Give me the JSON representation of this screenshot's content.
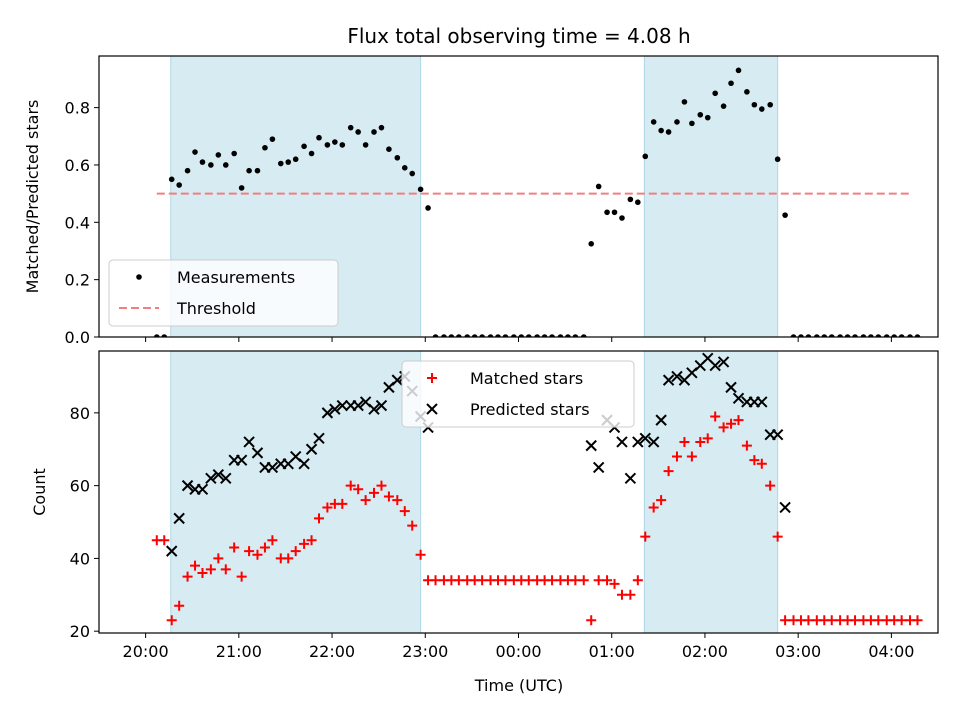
{
  "figure": {
    "title": "Flux total observing time = 4.08 h",
    "colors": {
      "shade": "#add8e6",
      "threshold": "#f08080",
      "matched": "#ff0000",
      "predicted": "#000000",
      "measurement": "#000000"
    },
    "x_axis": {
      "label": "Time (UTC)",
      "unit": "hours",
      "range": [
        -0.5,
        8.5
      ],
      "ticks": [
        {
          "value": 0,
          "label": "20:00"
        },
        {
          "value": 1,
          "label": "21:00"
        },
        {
          "value": 2,
          "label": "22:00"
        },
        {
          "value": 3,
          "label": "23:00"
        },
        {
          "value": 4,
          "label": "00:00"
        },
        {
          "value": 5,
          "label": "01:00"
        },
        {
          "value": 6,
          "label": "02:00"
        },
        {
          "value": 7,
          "label": "03:00"
        },
        {
          "value": 8,
          "label": "04:00"
        }
      ]
    },
    "shaded_intervals": [
      [
        0.27,
        2.95
      ],
      [
        5.35,
        6.78
      ]
    ]
  },
  "chart_data": [
    {
      "type": "scatter",
      "ylabel": "Matched/Predicted stars",
      "ylim": [
        0,
        0.98
      ],
      "yticks": [
        0.0,
        0.2,
        0.4,
        0.6,
        0.8
      ],
      "ytick_labels": [
        "0.0",
        "0.2",
        "0.4",
        "0.6",
        "0.8"
      ],
      "legend": {
        "position": "lower-left",
        "entries": [
          "Measurements",
          "Threshold"
        ]
      },
      "threshold": {
        "name": "Threshold",
        "value": 0.5,
        "x_range": [
          0.12,
          8.22
        ]
      },
      "series": [
        {
          "name": "Measurements",
          "marker": "dot",
          "points": [
            [
              0.12,
              0.0
            ],
            [
              0.2,
              0.0
            ],
            [
              0.28,
              0.55
            ],
            [
              0.36,
              0.53
            ],
            [
              0.45,
              0.58
            ],
            [
              0.53,
              0.645
            ],
            [
              0.61,
              0.61
            ],
            [
              0.7,
              0.6
            ],
            [
              0.78,
              0.635
            ],
            [
              0.86,
              0.6
            ],
            [
              0.95,
              0.64
            ],
            [
              1.03,
              0.52
            ],
            [
              1.11,
              0.58
            ],
            [
              1.2,
              0.58
            ],
            [
              1.28,
              0.66
            ],
            [
              1.36,
              0.69
            ],
            [
              1.45,
              0.605
            ],
            [
              1.53,
              0.61
            ],
            [
              1.61,
              0.62
            ],
            [
              1.7,
              0.665
            ],
            [
              1.78,
              0.64
            ],
            [
              1.86,
              0.695
            ],
            [
              1.95,
              0.67
            ],
            [
              2.03,
              0.68
            ],
            [
              2.11,
              0.67
            ],
            [
              2.2,
              0.73
            ],
            [
              2.28,
              0.715
            ],
            [
              2.36,
              0.67
            ],
            [
              2.45,
              0.715
            ],
            [
              2.53,
              0.73
            ],
            [
              2.61,
              0.655
            ],
            [
              2.7,
              0.625
            ],
            [
              2.78,
              0.59
            ],
            [
              2.86,
              0.57
            ],
            [
              2.95,
              0.515
            ],
            [
              3.03,
              0.45
            ],
            [
              3.11,
              0.0
            ],
            [
              3.2,
              0.0
            ],
            [
              3.28,
              0.0
            ],
            [
              3.36,
              0.0
            ],
            [
              3.45,
              0.0
            ],
            [
              3.53,
              0.0
            ],
            [
              3.61,
              0.0
            ],
            [
              3.7,
              0.0
            ],
            [
              3.78,
              0.0
            ],
            [
              3.86,
              0.0
            ],
            [
              3.95,
              0.0
            ],
            [
              4.03,
              0.0
            ],
            [
              4.11,
              0.0
            ],
            [
              4.2,
              0.0
            ],
            [
              4.28,
              0.0
            ],
            [
              4.36,
              0.0
            ],
            [
              4.45,
              0.0
            ],
            [
              4.53,
              0.0
            ],
            [
              4.61,
              0.0
            ],
            [
              4.7,
              0.0
            ],
            [
              4.78,
              0.325
            ],
            [
              4.86,
              0.525
            ],
            [
              4.95,
              0.435
            ],
            [
              5.03,
              0.435
            ],
            [
              5.11,
              0.415
            ],
            [
              5.2,
              0.48
            ],
            [
              5.28,
              0.47
            ],
            [
              5.36,
              0.63
            ],
            [
              5.45,
              0.75
            ],
            [
              5.53,
              0.72
            ],
            [
              5.61,
              0.715
            ],
            [
              5.7,
              0.75
            ],
            [
              5.78,
              0.82
            ],
            [
              5.86,
              0.745
            ],
            [
              5.95,
              0.775
            ],
            [
              6.03,
              0.765
            ],
            [
              6.11,
              0.85
            ],
            [
              6.2,
              0.805
            ],
            [
              6.28,
              0.885
            ],
            [
              6.36,
              0.93
            ],
            [
              6.45,
              0.855
            ],
            [
              6.53,
              0.81
            ],
            [
              6.61,
              0.795
            ],
            [
              6.7,
              0.81
            ],
            [
              6.78,
              0.62
            ],
            [
              6.86,
              0.425
            ],
            [
              6.95,
              0.0
            ],
            [
              7.03,
              0.0
            ],
            [
              7.11,
              0.0
            ],
            [
              7.2,
              0.0
            ],
            [
              7.28,
              0.0
            ],
            [
              7.36,
              0.0
            ],
            [
              7.45,
              0.0
            ],
            [
              7.53,
              0.0
            ],
            [
              7.61,
              0.0
            ],
            [
              7.7,
              0.0
            ],
            [
              7.78,
              0.0
            ],
            [
              7.86,
              0.0
            ],
            [
              7.95,
              0.0
            ],
            [
              8.03,
              0.0
            ],
            [
              8.11,
              0.0
            ],
            [
              8.2,
              0.0
            ],
            [
              8.28,
              0.0
            ]
          ]
        }
      ]
    },
    {
      "type": "scatter",
      "ylabel": "Count",
      "ylim": [
        19.5,
        97
      ],
      "yticks": [
        20,
        40,
        60,
        80
      ],
      "ytick_labels": [
        "20",
        "40",
        "60",
        "80"
      ],
      "legend": {
        "position": "upper-center",
        "entries": [
          "Matched stars",
          "Predicted stars"
        ]
      },
      "series": [
        {
          "name": "Matched stars",
          "marker": "plus",
          "points": [
            [
              0.12,
              45
            ],
            [
              0.2,
              45
            ],
            [
              0.28,
              23
            ],
            [
              0.36,
              27
            ],
            [
              0.45,
              35
            ],
            [
              0.53,
              38
            ],
            [
              0.61,
              36
            ],
            [
              0.7,
              37
            ],
            [
              0.78,
              40
            ],
            [
              0.86,
              37
            ],
            [
              0.95,
              43
            ],
            [
              1.03,
              35
            ],
            [
              1.11,
              42
            ],
            [
              1.2,
              41
            ],
            [
              1.28,
              43
            ],
            [
              1.36,
              45
            ],
            [
              1.45,
              40
            ],
            [
              1.53,
              40
            ],
            [
              1.61,
              42
            ],
            [
              1.7,
              44
            ],
            [
              1.78,
              45
            ],
            [
              1.86,
              51
            ],
            [
              1.95,
              54
            ],
            [
              2.03,
              55
            ],
            [
              2.11,
              55
            ],
            [
              2.2,
              60
            ],
            [
              2.28,
              59
            ],
            [
              2.36,
              56
            ],
            [
              2.45,
              58
            ],
            [
              2.53,
              60
            ],
            [
              2.61,
              57
            ],
            [
              2.7,
              56
            ],
            [
              2.78,
              53
            ],
            [
              2.86,
              49
            ],
            [
              2.95,
              41
            ],
            [
              3.03,
              34
            ],
            [
              3.11,
              34
            ],
            [
              3.2,
              34
            ],
            [
              3.28,
              34
            ],
            [
              3.36,
              34
            ],
            [
              3.45,
              34
            ],
            [
              3.53,
              34
            ],
            [
              3.61,
              34
            ],
            [
              3.7,
              34
            ],
            [
              3.78,
              34
            ],
            [
              3.86,
              34
            ],
            [
              3.95,
              34
            ],
            [
              4.03,
              34
            ],
            [
              4.11,
              34
            ],
            [
              4.2,
              34
            ],
            [
              4.28,
              34
            ],
            [
              4.36,
              34
            ],
            [
              4.45,
              34
            ],
            [
              4.53,
              34
            ],
            [
              4.61,
              34
            ],
            [
              4.7,
              34
            ],
            [
              4.78,
              23
            ],
            [
              4.86,
              34
            ],
            [
              4.95,
              34
            ],
            [
              5.03,
              33
            ],
            [
              5.11,
              30
            ],
            [
              5.2,
              30
            ],
            [
              5.28,
              34
            ],
            [
              5.36,
              46
            ],
            [
              5.45,
              54
            ],
            [
              5.53,
              56
            ],
            [
              5.61,
              64
            ],
            [
              5.7,
              68
            ],
            [
              5.78,
              72
            ],
            [
              5.86,
              68
            ],
            [
              5.95,
              72
            ],
            [
              6.03,
              73
            ],
            [
              6.11,
              79
            ],
            [
              6.2,
              76
            ],
            [
              6.28,
              77
            ],
            [
              6.36,
              78
            ],
            [
              6.45,
              71
            ],
            [
              6.53,
              67
            ],
            [
              6.61,
              66
            ],
            [
              6.7,
              60
            ],
            [
              6.78,
              46
            ],
            [
              6.86,
              23
            ],
            [
              6.95,
              23
            ],
            [
              7.03,
              23
            ],
            [
              7.11,
              23
            ],
            [
              7.2,
              23
            ],
            [
              7.28,
              23
            ],
            [
              7.36,
              23
            ],
            [
              7.45,
              23
            ],
            [
              7.53,
              23
            ],
            [
              7.61,
              23
            ],
            [
              7.7,
              23
            ],
            [
              7.78,
              23
            ],
            [
              7.86,
              23
            ],
            [
              7.95,
              23
            ],
            [
              8.03,
              23
            ],
            [
              8.11,
              23
            ],
            [
              8.2,
              23
            ],
            [
              8.28,
              23
            ]
          ]
        },
        {
          "name": "Predicted stars",
          "marker": "x",
          "points": [
            [
              0.28,
              42
            ],
            [
              0.36,
              51
            ],
            [
              0.45,
              60
            ],
            [
              0.53,
              59
            ],
            [
              0.61,
              59
            ],
            [
              0.7,
              62
            ],
            [
              0.78,
              63
            ],
            [
              0.86,
              62
            ],
            [
              0.95,
              67
            ],
            [
              1.03,
              67
            ],
            [
              1.11,
              72
            ],
            [
              1.2,
              69
            ],
            [
              1.28,
              65
            ],
            [
              1.36,
              65
            ],
            [
              1.45,
              66
            ],
            [
              1.53,
              66
            ],
            [
              1.61,
              68
            ],
            [
              1.7,
              66
            ],
            [
              1.78,
              70
            ],
            [
              1.86,
              73
            ],
            [
              1.95,
              80
            ],
            [
              2.03,
              81
            ],
            [
              2.11,
              82
            ],
            [
              2.2,
              82
            ],
            [
              2.28,
              82
            ],
            [
              2.36,
              83
            ],
            [
              2.45,
              81
            ],
            [
              2.53,
              82
            ],
            [
              2.61,
              87
            ],
            [
              2.7,
              89
            ],
            [
              2.78,
              90
            ],
            [
              2.86,
              86
            ],
            [
              2.95,
              79
            ],
            [
              3.03,
              76
            ],
            [
              4.78,
              71
            ],
            [
              4.86,
              65
            ],
            [
              4.95,
              78
            ],
            [
              5.03,
              76
            ],
            [
              5.11,
              72
            ],
            [
              5.2,
              62
            ],
            [
              5.28,
              72
            ],
            [
              5.36,
              73
            ],
            [
              5.45,
              72
            ],
            [
              5.53,
              78
            ],
            [
              5.61,
              89
            ],
            [
              5.7,
              90
            ],
            [
              5.78,
              89
            ],
            [
              5.86,
              91
            ],
            [
              5.95,
              93
            ],
            [
              6.03,
              95
            ],
            [
              6.11,
              93
            ],
            [
              6.2,
              94
            ],
            [
              6.28,
              87
            ],
            [
              6.36,
              84
            ],
            [
              6.45,
              83
            ],
            [
              6.53,
              83
            ],
            [
              6.61,
              83
            ],
            [
              6.7,
              74
            ],
            [
              6.78,
              74
            ],
            [
              6.86,
              54
            ]
          ]
        }
      ]
    }
  ]
}
